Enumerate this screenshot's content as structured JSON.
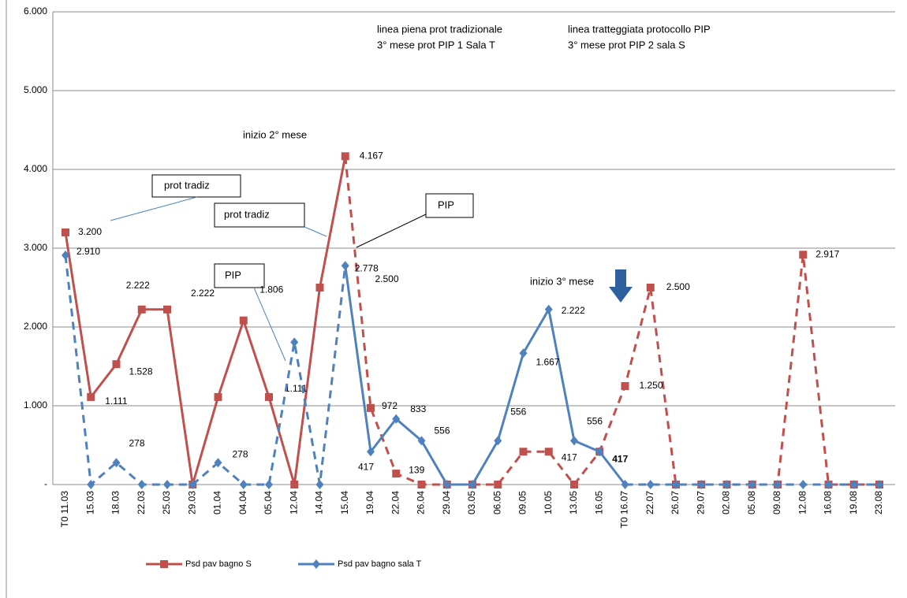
{
  "chart_data": {
    "type": "line",
    "categories": [
      "T0 11.03",
      "15.03",
      "18.03",
      "22.03",
      "25.03",
      "29.03",
      "01.04",
      "04.04",
      "05.04",
      "12.04",
      "14.04",
      "15.04",
      "19.04",
      "22.04",
      "26.04",
      "29.04",
      "03.05",
      "06.05",
      "09.05",
      "10.05",
      "13.05",
      "16.05",
      "T0 16.07",
      "22.07",
      "26.07",
      "29.07",
      "02.08",
      "05.08",
      "09.08",
      "12.08",
      "16.08",
      "19.08",
      "23.08"
    ],
    "ylim": [
      0,
      6000
    ],
    "yticks": [
      {
        "value": 0,
        "label": "-"
      },
      {
        "value": 1000,
        "label": "1.000"
      },
      {
        "value": 2000,
        "label": "2.000"
      },
      {
        "value": 3000,
        "label": "3.000"
      },
      {
        "value": 4000,
        "label": "4.000"
      },
      {
        "value": 5000,
        "label": "5.000"
      },
      {
        "value": 6000,
        "label": "6.000"
      }
    ],
    "grid": true,
    "series": [
      {
        "name": "Psd pav bagno S",
        "color": "#c0504d",
        "marker": "square",
        "values": [
          3200,
          1111,
          1528,
          2222,
          2222,
          0,
          1111,
          2083,
          1111,
          0,
          2500,
          4167,
          972,
          139,
          0,
          0,
          0,
          0,
          417,
          417,
          0,
          417,
          1250,
          2500,
          0,
          0,
          0,
          0,
          0,
          2917,
          0,
          0,
          0
        ],
        "value_labels": [
          "3.200",
          "1.111",
          "1.528",
          "2.222",
          "2.222",
          null,
          null,
          null,
          "1.111",
          null,
          "2.500",
          "4.167",
          "972",
          "139",
          null,
          null,
          null,
          null,
          null,
          "417",
          null,
          "417",
          "1.250",
          "2.500",
          null,
          null,
          null,
          null,
          null,
          "2.917",
          null,
          null,
          null
        ],
        "line_style": [
          "solid",
          "solid",
          "solid",
          "solid",
          "solid",
          "solid",
          "solid",
          "solid",
          "solid",
          "solid",
          "solid",
          "dashed",
          "dashed",
          "dashed",
          "dashed",
          "dashed",
          "dashed",
          "dashed",
          "dashed",
          "dashed",
          "dashed",
          "dashed",
          "dashed",
          "dashed",
          "dashed",
          "dashed",
          "dashed",
          "dashed",
          "dashed",
          "dashed",
          "dashed",
          "dashed"
        ]
      },
      {
        "name": "Psd pav bagno sala T",
        "color": "#4f81bd",
        "marker": "diamond",
        "values": [
          2910,
          0,
          278,
          0,
          0,
          0,
          278,
          0,
          0,
          1806,
          0,
          2778,
          417,
          833,
          556,
          0,
          0,
          556,
          1667,
          2222,
          556,
          417,
          0,
          0,
          0,
          0,
          0,
          0,
          0,
          0,
          0,
          0,
          0
        ],
        "value_labels": [
          "2.910",
          null,
          "278",
          null,
          null,
          null,
          "278",
          null,
          null,
          "1.806",
          null,
          "2.778",
          "417",
          "833",
          "556",
          null,
          null,
          "556",
          "1.667",
          "2.222",
          "556",
          null,
          null,
          null,
          null,
          null,
          null,
          null,
          null,
          null,
          null,
          null,
          null
        ],
        "line_style": [
          "dashed",
          "dashed",
          "dashed",
          "dashed",
          "dashed",
          "dashed",
          "dashed",
          "dashed",
          "dashed",
          "dashed",
          "dashed",
          "solid",
          "solid",
          "solid",
          "solid",
          "solid",
          "solid",
          "solid",
          "solid",
          "solid",
          "solid",
          "solid",
          "dashed",
          "dashed",
          "dashed",
          "dashed",
          "dashed",
          "dashed",
          "dashed",
          "dashed",
          "dashed",
          "dashed"
        ]
      }
    ],
    "annotations": [
      "linea piena prot tradizionale",
      "3° mese prot PIP 1 Sala T",
      "linea tratteggiata protocollo PIP",
      "3° mese prot PIP 2 sala S",
      "inizio 2° mese",
      "inizio 3° mese",
      "prot tradiz",
      "prot tradiz",
      "PIP",
      "PIP"
    ]
  }
}
